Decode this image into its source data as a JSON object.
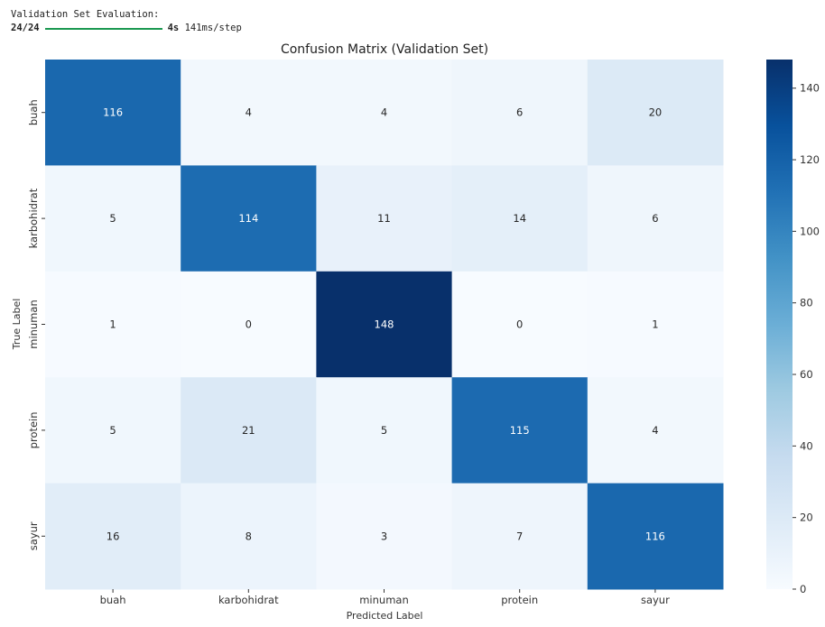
{
  "console": {
    "line1": "Validation Set Evaluation:",
    "step": "24/24",
    "time": "4s",
    "rate": "141ms/step"
  },
  "chart_data": {
    "type": "heatmap",
    "title": "Confusion Matrix (Validation Set)",
    "xlabel": "Predicted Label",
    "ylabel": "True Label",
    "x_categories": [
      "buah",
      "karbohidrat",
      "minuman",
      "protein",
      "sayur"
    ],
    "y_categories": [
      "buah",
      "karbohidrat",
      "minuman",
      "protein",
      "sayur"
    ],
    "values": [
      [
        116,
        4,
        4,
        6,
        20
      ],
      [
        5,
        114,
        11,
        14,
        6
      ],
      [
        1,
        0,
        148,
        0,
        1
      ],
      [
        5,
        21,
        5,
        115,
        4
      ],
      [
        16,
        8,
        3,
        7,
        116
      ]
    ],
    "colormap": "Blues",
    "vmin": 0,
    "vmax": 148,
    "colorbar_ticks": [
      0,
      20,
      40,
      60,
      80,
      100,
      120,
      140
    ]
  }
}
